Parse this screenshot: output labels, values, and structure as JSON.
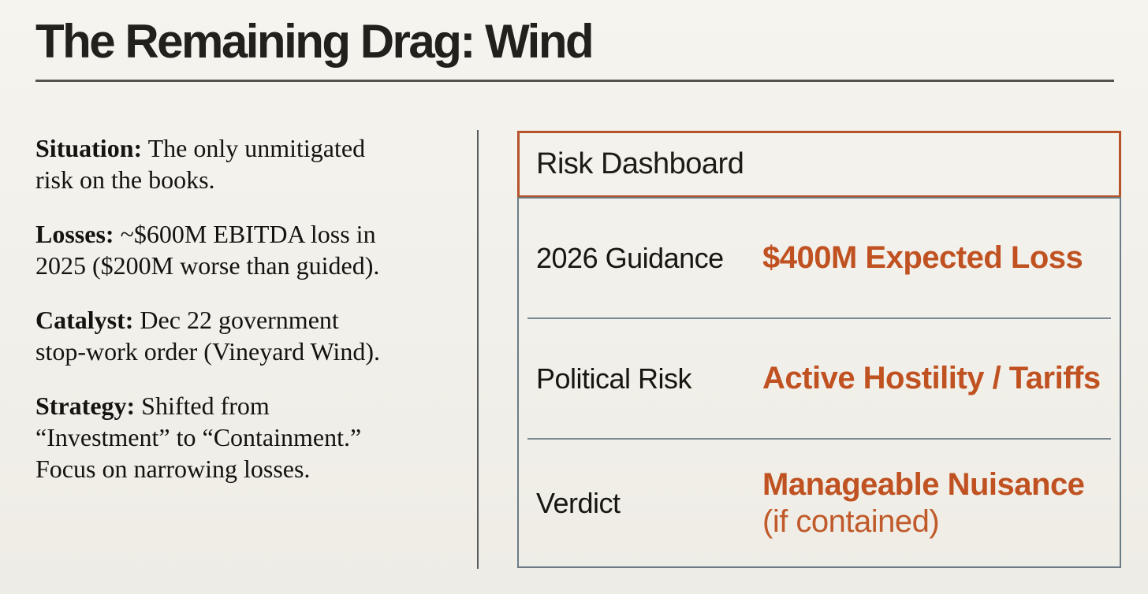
{
  "title": "The Remaining Drag: Wind",
  "left": {
    "paragraphs": [
      {
        "label": "Situation:",
        "text": "The only unmitigated\nrisk on the books."
      },
      {
        "label": "Losses:",
        "text": "~$600M EBITDA loss in\n2025 ($200M worse than guided)."
      },
      {
        "label": "Catalyst:",
        "text": "Dec 22 government\nstop-work order (Vineyard Wind)."
      },
      {
        "label": "Strategy:",
        "text": "Shifted from\n“Investment” to “Containment.”\nFocus on narrowing losses."
      }
    ]
  },
  "dashboard": {
    "header": "Risk Dashboard",
    "rows": [
      {
        "label": "2026 Guidance",
        "value": "$400M Expected Loss"
      },
      {
        "label": "Political Risk",
        "value": "Active Hostility / Tariffs"
      },
      {
        "label": "Verdict",
        "value": "Manageable Nuisance",
        "value_sub": "(if contained)"
      }
    ]
  },
  "colors": {
    "background": "#f2f0e9",
    "accent_orange": "#c05222",
    "header_border_orange": "#b5532b",
    "panel_border_slate": "#6b7c87",
    "text_black": "#141310"
  }
}
